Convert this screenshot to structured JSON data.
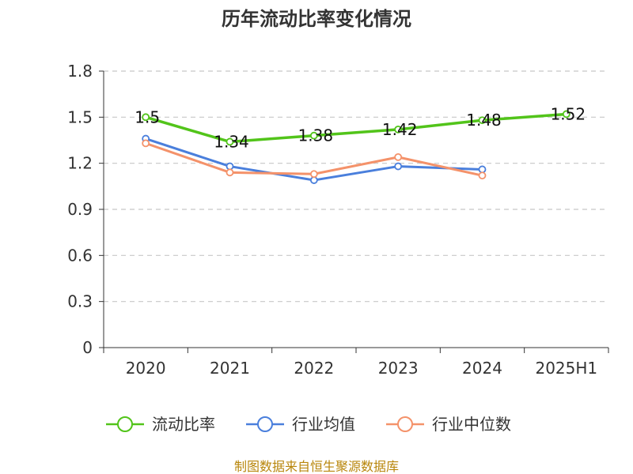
{
  "title": "历年流动比率变化情况",
  "source": "制图数据来自恒生聚源数据库",
  "chart_data": {
    "type": "line",
    "categories": [
      "2020",
      "2021",
      "2022",
      "2023",
      "2024",
      "2025H1"
    ],
    "y_ticks": [
      "0",
      "0.3",
      "0.6",
      "0.9",
      "1.2",
      "1.5",
      "1.8"
    ],
    "ylim": [
      0,
      1.8
    ],
    "grid": true,
    "legend_position": "bottom",
    "series": [
      {
        "name": "流动比率",
        "color": "#52c41a",
        "values": [
          1.5,
          1.34,
          1.38,
          1.42,
          1.48,
          1.52
        ],
        "labels": [
          "1.5",
          "1.34",
          "1.38",
          "1.42",
          "1.48",
          "1.52"
        ]
      },
      {
        "name": "行业均值",
        "color": "#4a7fdc",
        "values": [
          1.36,
          1.18,
          1.09,
          1.18,
          1.16,
          null
        ]
      },
      {
        "name": "行业中位数",
        "color": "#f4926a",
        "values": [
          1.33,
          1.14,
          1.13,
          1.24,
          1.12,
          null
        ]
      }
    ]
  }
}
